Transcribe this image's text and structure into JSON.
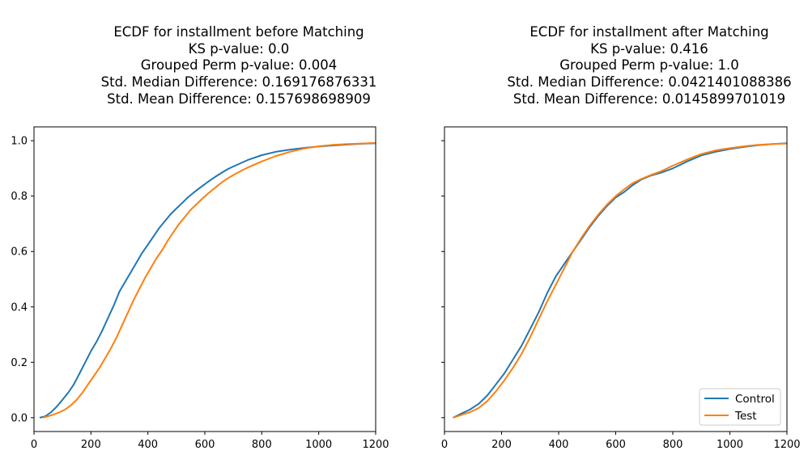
{
  "colors": {
    "control": "#1f77b4",
    "test": "#ff7f0e"
  },
  "chart_data": [
    {
      "type": "line",
      "title_lines": [
        "ECDF for installment before Matching",
        "KS p-value: 0.0",
        "Grouped Perm p-value: 0.004",
        "Std. Median Difference: 0.169176876331",
        "Std. Mean Difference: 0.157698698909"
      ],
      "xlim": [
        0,
        1200
      ],
      "ylim": [
        -0.05,
        1.05
      ],
      "xticks": [
        "0",
        "200",
        "400",
        "600",
        "800",
        "1000",
        "1200"
      ],
      "yticks": [
        "0.0",
        "0.2",
        "0.4",
        "0.6",
        "0.8",
        "1.0"
      ],
      "grid": false,
      "legend": null,
      "series": [
        {
          "key": "control",
          "x": [
            20,
            40,
            60,
            80,
            100,
            120,
            140,
            160,
            180,
            200,
            220,
            240,
            260,
            280,
            300,
            320,
            340,
            360,
            380,
            400,
            420,
            440,
            460,
            480,
            500,
            520,
            540,
            560,
            580,
            600,
            620,
            640,
            660,
            680,
            700,
            750,
            800,
            850,
            900,
            950,
            1000,
            1050,
            1100,
            1150,
            1200
          ],
          "y": [
            0.0,
            0.005,
            0.02,
            0.04,
            0.065,
            0.09,
            0.12,
            0.16,
            0.2,
            0.24,
            0.275,
            0.315,
            0.36,
            0.405,
            0.455,
            0.49,
            0.525,
            0.56,
            0.595,
            0.625,
            0.655,
            0.685,
            0.71,
            0.735,
            0.755,
            0.775,
            0.795,
            0.812,
            0.828,
            0.843,
            0.858,
            0.872,
            0.885,
            0.897,
            0.907,
            0.93,
            0.948,
            0.96,
            0.968,
            0.974,
            0.979,
            0.983,
            0.986,
            0.989,
            0.991
          ]
        },
        {
          "key": "test",
          "x": [
            30,
            50,
            70,
            90,
            110,
            130,
            150,
            170,
            190,
            210,
            230,
            250,
            270,
            290,
            310,
            330,
            350,
            370,
            390,
            410,
            430,
            450,
            470,
            490,
            510,
            530,
            550,
            570,
            590,
            610,
            630,
            650,
            670,
            690,
            710,
            750,
            800,
            850,
            900,
            950,
            1000,
            1050,
            1100,
            1150,
            1200
          ],
          "y": [
            0.0,
            0.005,
            0.012,
            0.02,
            0.03,
            0.045,
            0.065,
            0.09,
            0.12,
            0.15,
            0.18,
            0.215,
            0.25,
            0.29,
            0.335,
            0.38,
            0.425,
            0.465,
            0.505,
            0.54,
            0.575,
            0.605,
            0.64,
            0.67,
            0.7,
            0.725,
            0.75,
            0.77,
            0.79,
            0.808,
            0.825,
            0.842,
            0.857,
            0.87,
            0.882,
            0.903,
            0.925,
            0.945,
            0.96,
            0.972,
            0.98,
            0.985,
            0.988,
            0.99,
            0.992
          ]
        }
      ]
    },
    {
      "type": "line",
      "title_lines": [
        "ECDF for installment after Matching",
        "KS p-value: 0.416",
        "Grouped Perm p-value: 1.0",
        "Std. Median Difference: 0.0421401088386",
        "Std. Mean Difference: 0.0145899701019"
      ],
      "xlim": [
        0,
        1200
      ],
      "ylim": [
        -0.05,
        1.05
      ],
      "xticks": [
        "0",
        "200",
        "400",
        "600",
        "800",
        "1000",
        "1200"
      ],
      "yticks": [
        "0.0",
        "0.2",
        "0.4",
        "0.6",
        "0.8",
        "1.0"
      ],
      "grid": false,
      "legend": "lower-right",
      "series": [
        {
          "key": "control",
          "name": "Control",
          "x": [
            30,
            60,
            90,
            120,
            150,
            180,
            210,
            240,
            270,
            300,
            330,
            360,
            390,
            420,
            450,
            480,
            510,
            540,
            570,
            600,
            630,
            660,
            690,
            720,
            760,
            800,
            850,
            900,
            950,
            1000,
            1050,
            1100,
            1150,
            1200
          ],
          "y": [
            0.0,
            0.015,
            0.03,
            0.05,
            0.08,
            0.12,
            0.16,
            0.21,
            0.26,
            0.32,
            0.38,
            0.45,
            0.51,
            0.555,
            0.6,
            0.645,
            0.69,
            0.73,
            0.765,
            0.795,
            0.815,
            0.84,
            0.86,
            0.873,
            0.885,
            0.9,
            0.925,
            0.947,
            0.96,
            0.97,
            0.978,
            0.984,
            0.988,
            0.991
          ]
        },
        {
          "key": "test",
          "name": "Test",
          "x": [
            30,
            60,
            90,
            120,
            150,
            180,
            210,
            240,
            270,
            300,
            330,
            360,
            390,
            420,
            450,
            480,
            510,
            540,
            570,
            600,
            630,
            660,
            690,
            720,
            760,
            800,
            850,
            900,
            950,
            1000,
            1050,
            1100,
            1150,
            1200
          ],
          "y": [
            0.0,
            0.01,
            0.02,
            0.035,
            0.06,
            0.095,
            0.135,
            0.18,
            0.23,
            0.29,
            0.355,
            0.42,
            0.48,
            0.54,
            0.6,
            0.65,
            0.695,
            0.735,
            0.77,
            0.8,
            0.825,
            0.847,
            0.862,
            0.875,
            0.89,
            0.91,
            0.932,
            0.952,
            0.965,
            0.973,
            0.98,
            0.985,
            0.988,
            0.99
          ]
        }
      ]
    }
  ]
}
